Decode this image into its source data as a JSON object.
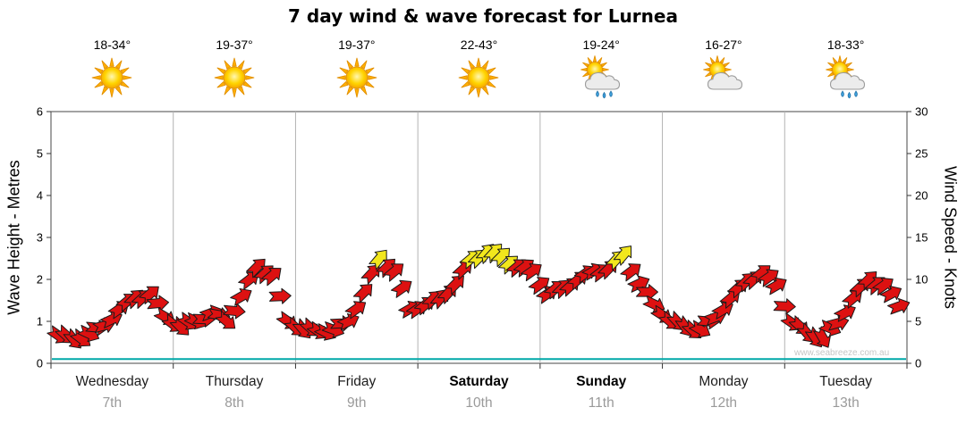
{
  "page": {
    "title": "7 day wind & wave forecast for Lurnea",
    "watermark": "www.seabreeze.com.au"
  },
  "forecast": {
    "days": [
      {
        "name": "Wednesday",
        "date": "7th",
        "temp_range": "18-34°",
        "icon": "sunny",
        "weekend": false
      },
      {
        "name": "Thursday",
        "date": "8th",
        "temp_range": "19-37°",
        "icon": "sunny",
        "weekend": false
      },
      {
        "name": "Friday",
        "date": "9th",
        "temp_range": "19-37°",
        "icon": "sunny",
        "weekend": false
      },
      {
        "name": "Saturday",
        "date": "10th",
        "temp_range": "22-43°",
        "icon": "sunny",
        "weekend": true
      },
      {
        "name": "Sunday",
        "date": "11th",
        "temp_range": "19-24°",
        "icon": "sun-cloud-rain",
        "weekend": true
      },
      {
        "name": "Monday",
        "date": "12th",
        "temp_range": "16-27°",
        "icon": "sun-cloud",
        "weekend": false
      },
      {
        "name": "Tuesday",
        "date": "13th",
        "temp_range": "18-33°",
        "icon": "sun-cloud-rain",
        "weekend": false
      }
    ]
  },
  "chart_data": {
    "type": "wind_arrow_timeseries_with_wave_line",
    "title": "7 day wind & wave forecast for Lurnea",
    "ylabel_left": "Wave Height - Metres",
    "ylabel_right": "Wind Speed - Knots",
    "ylim_left_metres": [
      0,
      6
    ],
    "ylim_right_knots": [
      0,
      30
    ],
    "yticks_left": [
      0,
      1,
      2,
      3,
      4,
      5,
      6
    ],
    "yticks_right": [
      0,
      5,
      10,
      15,
      20,
      25,
      30
    ],
    "x_categories": [
      "Wednesday",
      "Thursday",
      "Friday",
      "Saturday",
      "Sunday",
      "Monday",
      "Tuesday"
    ],
    "x_dates": [
      "7th",
      "8th",
      "9th",
      "10th",
      "11th",
      "12th",
      "13th"
    ],
    "grid": "vertical-day-separators-only",
    "legend": "none",
    "sample_interval_hours": 3,
    "wind_speed_knots": [
      3.3,
      2.8,
      3.5,
      4.5,
      6.5,
      7.8,
      8.3,
      5.5,
      4.3,
      5.0,
      6.0,
      5.0,
      8.0,
      11.5,
      10.5,
      5.0,
      4.0,
      3.8,
      4.0,
      5.0,
      8.5,
      12.5,
      11.0,
      6.5,
      7.0,
      7.8,
      9.5,
      12.5,
      13.2,
      12.8,
      11.5,
      11.0,
      8.3,
      9.0,
      10.0,
      11.0,
      11.3,
      13.0,
      9.5,
      7.0,
      5.0,
      4.3,
      4.0,
      5.5,
      7.8,
      9.8,
      10.8,
      9.3,
      4.8,
      3.5,
      3.0,
      4.8,
      7.8,
      10.0,
      9.3,
      6.8
    ],
    "wind_arrow_rotation_deg": [
      35,
      50,
      25,
      -15,
      -35,
      -45,
      -40,
      30,
      45,
      25,
      -20,
      40,
      -30,
      -45,
      -40,
      35,
      50,
      35,
      20,
      -25,
      -45,
      -50,
      -40,
      -30,
      -40,
      -50,
      -45,
      -40,
      -50,
      -45,
      -40,
      -35,
      -35,
      -45,
      -40,
      -30,
      -45,
      -50,
      -25,
      25,
      40,
      55,
      30,
      -20,
      -40,
      -45,
      -40,
      -30,
      35,
      50,
      60,
      -15,
      -40,
      -45,
      -35,
      -20
    ],
    "wind_color_rule": {
      "yellow_min_knots": 12,
      "red": "#DD1111",
      "yellow": "#F2E71C",
      "outline": "#1A1A1A"
    },
    "wave_height_metres_constant": 0.1,
    "wave_line_color": "#00A8A8",
    "watermark": "www.seabreeze.com.au"
  }
}
